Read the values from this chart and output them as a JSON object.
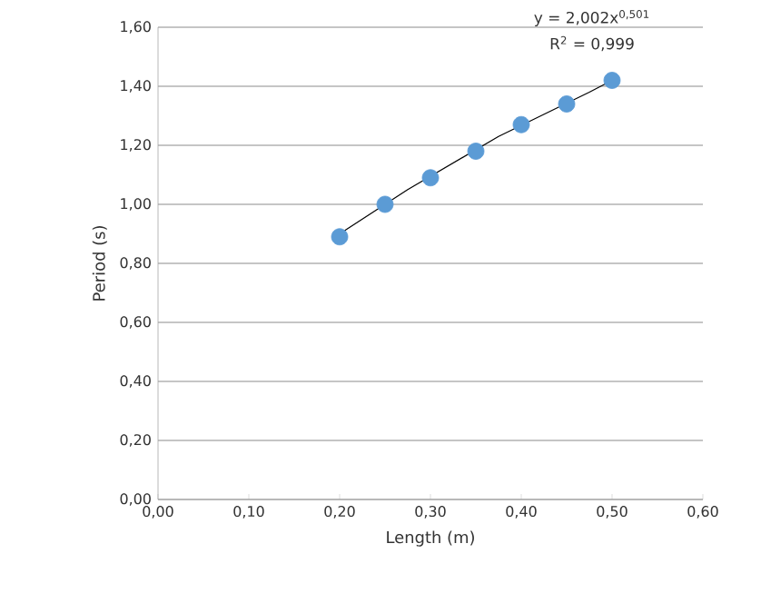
{
  "chart_data": {
    "type": "scatter",
    "xlabel": "Length (m)",
    "ylabel": "Period (s)",
    "annotations": [
      "y = 2,002x$^{0,501}$",
      "R$^{2}$ = 0,999"
    ],
    "series": [
      {
        "color": "#5b9bd5",
        "marker": "circle",
        "x": [
          0.2,
          0.25,
          0.3,
          0.35,
          0.4,
          0.45,
          0.5
        ],
        "values": [
          0.89,
          1.0,
          1.09,
          1.18,
          1.27,
          1.34,
          1.42
        ]
      },
      {
        "type": "line",
        "color": "#000000",
        "marker": "none",
        "line_style": "solid",
        "x": [
          0.2,
          0.275,
          0.375,
          0.475,
          0.5
        ],
        "values": [
          0.9,
          1.05,
          1.23,
          1.38,
          1.42
        ]
      }
    ],
    "xlim": [
      0,
      0.6
    ],
    "ylim": [
      0,
      1.6
    ],
    "xticks": [
      {
        "value": 0,
        "label": "0,00"
      },
      {
        "value": 0.1,
        "label": "0,10"
      },
      {
        "value": 0.2,
        "label": "0,20"
      },
      {
        "value": 0.3,
        "label": "0,30"
      },
      {
        "value": 0.4,
        "label": "0,40"
      },
      {
        "value": 0.5,
        "label": "0,50"
      },
      {
        "value": 0.6,
        "label": "0,60"
      }
    ],
    "yticks": [
      {
        "value": 0,
        "label": "0,00"
      },
      {
        "value": 0.2,
        "label": "0,20"
      },
      {
        "value": 0.4,
        "label": "0,40"
      },
      {
        "value": 0.6,
        "label": "0,60"
      },
      {
        "value": 0.8,
        "label": "0,80"
      },
      {
        "value": 1.0,
        "label": "1,00"
      },
      {
        "value": 1.2,
        "label": "1,20"
      },
      {
        "value": 1.4,
        "label": "1,40"
      },
      {
        "value": 1.6,
        "label": "1,60"
      }
    ],
    "grid": "y"
  }
}
